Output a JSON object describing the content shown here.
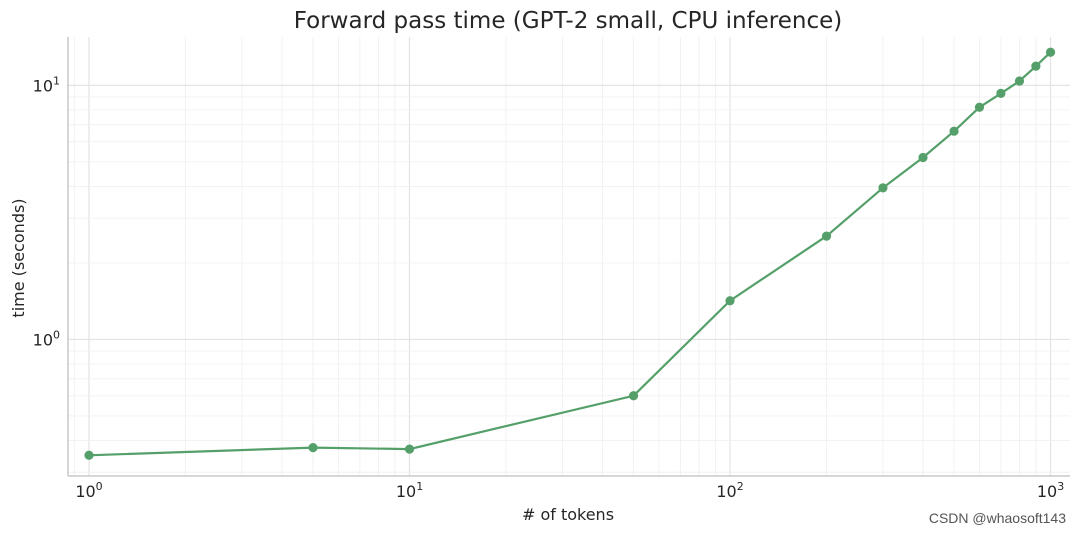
{
  "chart_data": {
    "type": "line",
    "title": "Forward pass time (GPT-2 small, CPU inference)",
    "xlabel": "# of tokens",
    "ylabel": "time (seconds)",
    "xscale": "log",
    "yscale": "log",
    "xlim": [
      0.86,
      1150
    ],
    "ylim": [
      0.29,
      15.5
    ],
    "grid": true,
    "xticks": [
      {
        "value": 1,
        "base": "10",
        "exp": "0"
      },
      {
        "value": 10,
        "base": "10",
        "exp": "1"
      },
      {
        "value": 100,
        "base": "10",
        "exp": "2"
      },
      {
        "value": 1000,
        "base": "10",
        "exp": "3"
      }
    ],
    "yticks": [
      {
        "value": 1,
        "base": "10",
        "exp": "0"
      },
      {
        "value": 10,
        "base": "10",
        "exp": "1"
      }
    ],
    "series": [
      {
        "name": "forward pass time",
        "color": "#55a06a",
        "x": [
          1,
          5,
          10,
          50,
          100,
          200,
          300,
          400,
          500,
          600,
          700,
          800,
          900,
          1000
        ],
        "values": [
          0.35,
          0.375,
          0.37,
          0.6,
          1.42,
          2.55,
          3.95,
          5.2,
          6.6,
          8.2,
          9.3,
          10.4,
          11.9,
          13.5
        ]
      }
    ]
  },
  "watermark": "CSDN @whaosoft143"
}
